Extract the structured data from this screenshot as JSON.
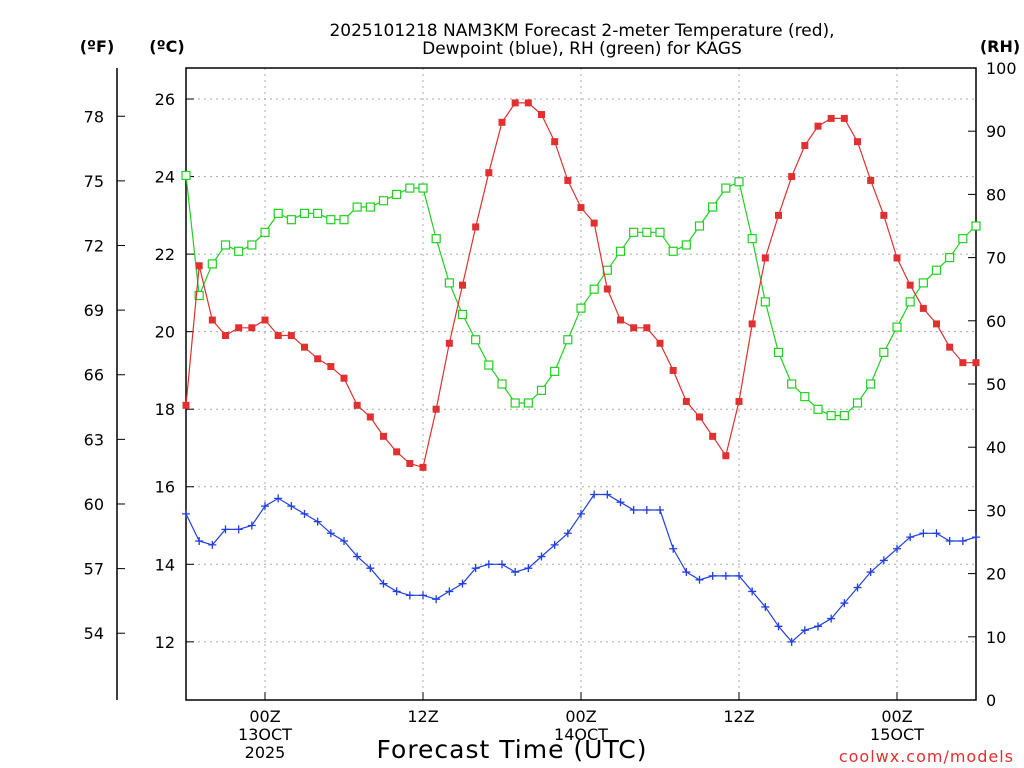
{
  "chart_data": {
    "type": "line",
    "title_line1": "2025101218 NAM3KM Forecast 2-meter Temperature (red),",
    "title_line2": "Dewpoint (blue), RH (green) for KAGS",
    "unit_labels": {
      "fahrenheit": "(ºF)",
      "celsius": "(ºC)",
      "rh": "(RH)"
    },
    "xlabel": "Forecast Time (UTC)",
    "credit": "coolwx.com/models",
    "x_hours": [
      0,
      1,
      2,
      3,
      4,
      5,
      6,
      7,
      8,
      9,
      10,
      11,
      12,
      13,
      14,
      15,
      16,
      17,
      18,
      19,
      20,
      21,
      22,
      23,
      24,
      25,
      26,
      27,
      28,
      29,
      30,
      31,
      32,
      33,
      34,
      35,
      36,
      37,
      38,
      39,
      40,
      41,
      42,
      43,
      44,
      45,
      46,
      47,
      48,
      49,
      50,
      51,
      52,
      53,
      54,
      55,
      56,
      57,
      58,
      59,
      60
    ],
    "xlim": [
      0,
      60
    ],
    "ylim_celsius": [
      10.5,
      26.8
    ],
    "ylim_rh": [
      0,
      100
    ],
    "celsius_ticks": [
      "12",
      "14",
      "16",
      "18",
      "20",
      "22",
      "24",
      "26"
    ],
    "fahrenheit_ticks": [
      "54",
      "57",
      "60",
      "63",
      "66",
      "69",
      "72",
      "75",
      "78"
    ],
    "rh_ticks": [
      "0",
      "10",
      "20",
      "30",
      "40",
      "50",
      "60",
      "70",
      "80",
      "90",
      "100"
    ],
    "x_ticks": [
      {
        "hour": 6,
        "lines": [
          "00Z",
          "13OCT",
          "2025"
        ]
      },
      {
        "hour": 18,
        "lines": [
          "12Z"
        ]
      },
      {
        "hour": 30,
        "lines": [
          "00Z",
          "14OCT"
        ]
      },
      {
        "hour": 42,
        "lines": [
          "12Z"
        ]
      },
      {
        "hour": 54,
        "lines": [
          "00Z",
          "15OCT"
        ]
      }
    ],
    "series": [
      {
        "name": "2-meter Temperature",
        "units": "C",
        "color": "#e03030",
        "marker": "filled-square",
        "values": [
          18.1,
          21.7,
          20.3,
          19.9,
          20.1,
          20.1,
          20.3,
          19.9,
          19.9,
          19.6,
          19.3,
          19.1,
          18.8,
          18.1,
          17.8,
          17.3,
          16.9,
          16.6,
          16.5,
          18.0,
          19.7,
          21.2,
          22.7,
          24.1,
          25.4,
          25.9,
          25.9,
          25.6,
          24.9,
          23.9,
          23.2,
          22.8,
          21.1,
          20.3,
          20.1,
          20.1,
          19.7,
          19.0,
          18.2,
          17.8,
          17.3,
          16.8,
          18.2,
          20.2,
          21.9,
          23.0,
          24.0,
          24.8,
          25.3,
          25.5,
          25.5,
          24.9,
          23.9,
          23.0,
          21.9,
          21.2,
          20.6,
          20.2,
          19.6,
          19.2,
          19.2
        ]
      },
      {
        "name": "Dewpoint",
        "units": "C",
        "color": "#2040e0",
        "marker": "plus",
        "values": [
          15.3,
          14.6,
          14.5,
          14.9,
          14.9,
          15.0,
          15.5,
          15.7,
          15.5,
          15.3,
          15.1,
          14.8,
          14.6,
          14.2,
          13.9,
          13.5,
          13.3,
          13.2,
          13.2,
          13.1,
          13.3,
          13.5,
          13.9,
          14.0,
          14.0,
          13.8,
          13.9,
          14.2,
          14.5,
          14.8,
          15.3,
          15.8,
          15.8,
          15.6,
          15.4,
          15.4,
          15.4,
          14.4,
          13.8,
          13.6,
          13.7,
          13.7,
          13.7,
          13.3,
          12.9,
          12.4,
          12.0,
          12.3,
          12.4,
          12.6,
          13.0,
          13.4,
          13.8,
          14.1,
          14.4,
          14.7,
          14.8,
          14.8,
          14.6,
          14.6,
          14.7
        ]
      },
      {
        "name": "RH",
        "units": "%",
        "color": "#20d020",
        "marker": "open-square",
        "values": [
          83,
          64,
          69,
          72,
          71,
          72,
          74,
          77,
          76,
          77,
          77,
          76,
          76,
          78,
          78,
          79,
          80,
          81,
          81,
          73,
          66,
          61,
          57,
          53,
          50,
          47,
          47,
          49,
          52,
          57,
          62,
          65,
          68,
          71,
          74,
          74,
          74,
          71,
          72,
          75,
          78,
          81,
          82,
          73,
          63,
          55,
          50,
          48,
          46,
          45,
          45,
          47,
          50,
          55,
          59,
          63,
          66,
          68,
          70,
          73,
          75
        ]
      }
    ]
  }
}
